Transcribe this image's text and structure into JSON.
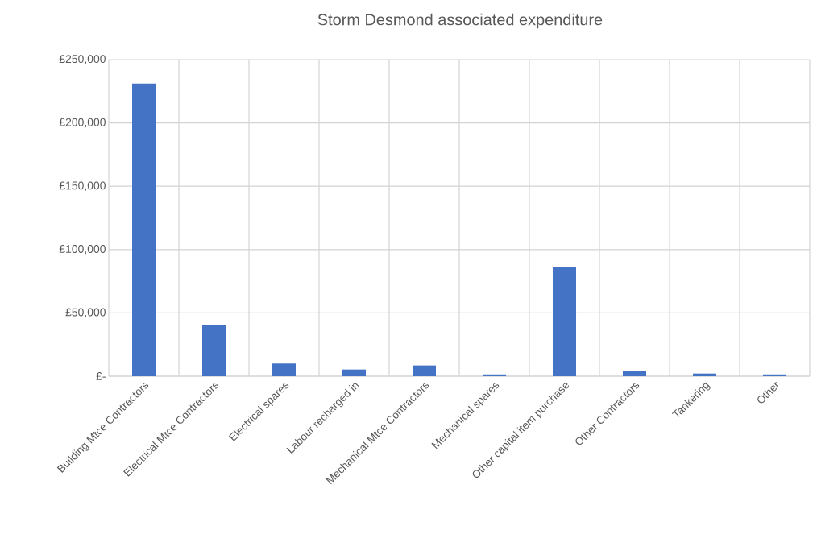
{
  "chart_data": {
    "type": "bar",
    "title": "Storm Desmond associated expenditure",
    "categories": [
      "Building Mtce Contractors",
      "Electrical Mtce Contractors",
      "Electrical spares",
      "Labour recharged in",
      "Mechanical Mtce Contractors",
      "Mechanical spares",
      "Other capital item purchase",
      "Other Contractors",
      "Tankering",
      "Other"
    ],
    "values": [
      231000,
      40000,
      10000,
      5300,
      8500,
      1400,
      86500,
      4200,
      2100,
      1400
    ],
    "color": "#4472c4",
    "ylim": [
      0,
      250000
    ],
    "yticks": [
      {
        "value": 0,
        "label": "£-"
      },
      {
        "value": 50000,
        "label": "£50,000"
      },
      {
        "value": 100000,
        "label": "£100,000"
      },
      {
        "value": 150000,
        "label": "£150,000"
      },
      {
        "value": 200000,
        "label": "£200,000"
      },
      {
        "value": 250000,
        "label": "£250,000"
      }
    ],
    "grid": true
  }
}
